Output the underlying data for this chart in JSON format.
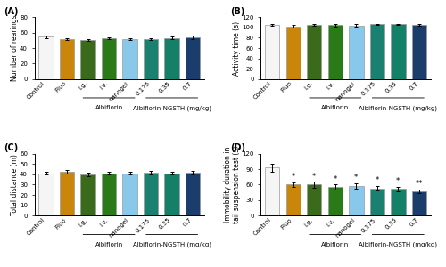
{
  "categories": [
    "Control",
    "Fluo",
    "i.g.",
    "i.v.",
    "nanogel",
    "0.175",
    "0.35",
    "0.7"
  ],
  "albiflorin_label": "Albiflorin",
  "ngsth_label": "Albiflorin-NGSTH (mg/kg)",
  "bar_colors": [
    "#f5f5f5",
    "#c9860a",
    "#3a6b1a",
    "#2a7a1a",
    "#88c8ea",
    "#1a8070",
    "#158068",
    "#1a3d6b"
  ],
  "bar_edge_colors": [
    "#999999",
    "#999999",
    "#999999",
    "#999999",
    "#999999",
    "#999999",
    "#999999",
    "#999999"
  ],
  "panel_A": {
    "title": "(A)",
    "ylabel": "Number of rearings",
    "ylim": [
      0,
      80
    ],
    "yticks": [
      0,
      20,
      40,
      60,
      80
    ],
    "values": [
      54.5,
      51.5,
      50.5,
      52.5,
      51.5,
      51.5,
      53.0,
      54.0
    ],
    "errors": [
      2.0,
      1.5,
      1.5,
      1.5,
      1.5,
      1.5,
      1.5,
      2.0
    ],
    "sig": [
      "",
      "",
      "",
      "",
      "",
      "",
      "",
      ""
    ]
  },
  "panel_B": {
    "title": "(B)",
    "ylabel": "Activity time (s)",
    "ylim": [
      0,
      120
    ],
    "yticks": [
      0,
      20,
      40,
      60,
      80,
      100,
      120
    ],
    "values": [
      104.5,
      102.0,
      104.5,
      104.0,
      103.5,
      105.5,
      105.5,
      104.5
    ],
    "errors": [
      2.0,
      2.0,
      2.0,
      2.0,
      2.0,
      1.5,
      1.5,
      1.5
    ],
    "sig": [
      "",
      "",
      "",
      "",
      "",
      "",
      "",
      ""
    ]
  },
  "panel_C": {
    "title": "(C)",
    "ylabel": "Total distance (m)",
    "ylim": [
      0,
      60
    ],
    "yticks": [
      0,
      10,
      20,
      30,
      40,
      50,
      60
    ],
    "values": [
      41.0,
      42.5,
      40.0,
      41.0,
      41.0,
      41.5,
      41.0,
      41.5
    ],
    "errors": [
      1.5,
      2.0,
      1.5,
      1.5,
      1.5,
      1.5,
      1.5,
      2.0
    ],
    "sig": [
      "",
      "",
      "",
      "",
      "",
      "",
      "",
      ""
    ]
  },
  "panel_D": {
    "title": "(D)",
    "ylabel": "Immobility duration in\ntail suspension test (s)",
    "ylim": [
      0,
      120
    ],
    "yticks": [
      0,
      30,
      60,
      90,
      120
    ],
    "values": [
      93.0,
      60.0,
      60.0,
      55.0,
      58.0,
      53.0,
      52.0,
      47.0
    ],
    "errors": [
      8.0,
      5.0,
      5.5,
      5.0,
      5.0,
      5.0,
      4.5,
      4.0
    ],
    "sig": [
      "",
      "*",
      "*",
      "*",
      "*",
      "*",
      "*",
      "**"
    ]
  },
  "sig_fontsize": 6,
  "label_fontsize": 5,
  "tick_fontsize": 5,
  "title_fontsize": 7,
  "ylabel_fontsize": 5.5
}
